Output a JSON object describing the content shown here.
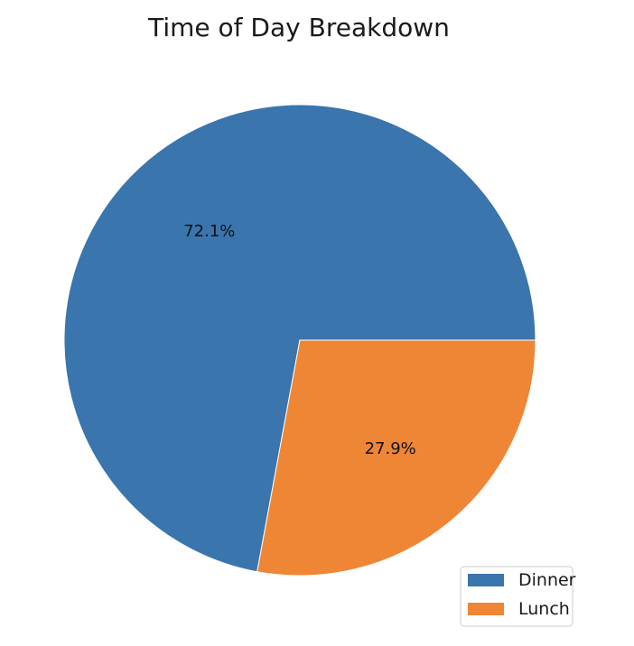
{
  "chart_data": {
    "type": "pie",
    "title": "Time of Day Breakdown",
    "categories": [
      "Dinner",
      "Lunch"
    ],
    "values": [
      72.1,
      27.9
    ],
    "labels": [
      "72.1%",
      "27.9%"
    ],
    "colors": [
      "#3a75ae",
      "#ef8636"
    ],
    "start_angle_deg": 0,
    "direction": "counterclockwise",
    "legend": {
      "placement": "lower-right",
      "entries": [
        "Dinner",
        "Lunch"
      ]
    }
  }
}
